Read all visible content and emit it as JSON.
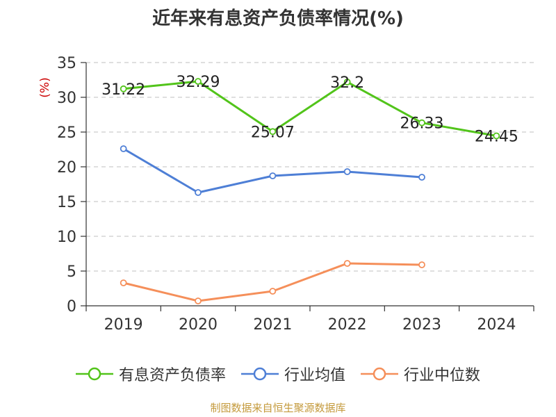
{
  "chart_data": {
    "type": "line",
    "title": "近年来有息资产负债率情况(%)",
    "ylabel": "(%)",
    "categories": [
      "2019",
      "2020",
      "2021",
      "2022",
      "2023",
      "2024"
    ],
    "ylim": [
      0,
      35
    ],
    "yticks": [
      0,
      5,
      10,
      15,
      20,
      25,
      30,
      35
    ],
    "grid": true,
    "legend_position": "bottom",
    "series": [
      {
        "name": "有息资产负债率",
        "color": "#52c41a",
        "values": [
          31.22,
          32.29,
          25.07,
          32.2,
          26.33,
          24.45
        ],
        "labels": [
          "31.22",
          "32.29",
          "25.07",
          "32.2",
          "26.33",
          "24.45"
        ]
      },
      {
        "name": "行业均值",
        "color": "#4e7fd6",
        "values": [
          22.6,
          16.3,
          18.7,
          19.3,
          18.5,
          null
        ]
      },
      {
        "name": "行业中位数",
        "color": "#f58f5a",
        "values": [
          3.3,
          0.7,
          2.1,
          6.1,
          5.9,
          null
        ]
      }
    ]
  },
  "source": "制图数据来自恒生聚源数据库"
}
